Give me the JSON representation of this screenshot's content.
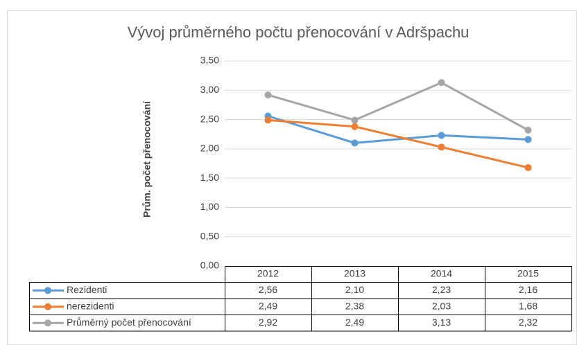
{
  "chart_data": {
    "type": "line",
    "title": "Vývoj průměrného počtu přenocování v Adršpachu",
    "y_label": "Prům. počet přenocování",
    "categories": [
      "2012",
      "2013",
      "2014",
      "2015"
    ],
    "series": [
      {
        "name": "Rezidenti",
        "color": "#5b9bd5",
        "values": [
          2.56,
          2.1,
          2.23,
          2.16
        ],
        "value_labels": [
          "2,56",
          "2,10",
          "2,23",
          "2,16"
        ]
      },
      {
        "name": "nerezidenti",
        "color": "#ed7d31",
        "values": [
          2.49,
          2.38,
          2.03,
          1.68
        ],
        "value_labels": [
          "2,49",
          "2,38",
          "2,03",
          "1,68"
        ]
      },
      {
        "name": "Průměrný počet přenocování",
        "color": "#a5a5a5",
        "values": [
          2.92,
          2.49,
          3.13,
          2.32
        ],
        "value_labels": [
          "2,92",
          "2,49",
          "3,13",
          "2,32"
        ]
      }
    ],
    "ylim": [
      0,
      3.5
    ],
    "yticks": [
      {
        "value": 0,
        "label": "0,00"
      },
      {
        "value": 0.5,
        "label": "0,50"
      },
      {
        "value": 1,
        "label": "1,00"
      },
      {
        "value": 1.5,
        "label": "1,50"
      },
      {
        "value": 2,
        "label": "2,00"
      },
      {
        "value": 2.5,
        "label": "2,50"
      },
      {
        "value": 3,
        "label": "3,00"
      },
      {
        "value": 3.5,
        "label": "3,50"
      }
    ],
    "grid": true
  }
}
